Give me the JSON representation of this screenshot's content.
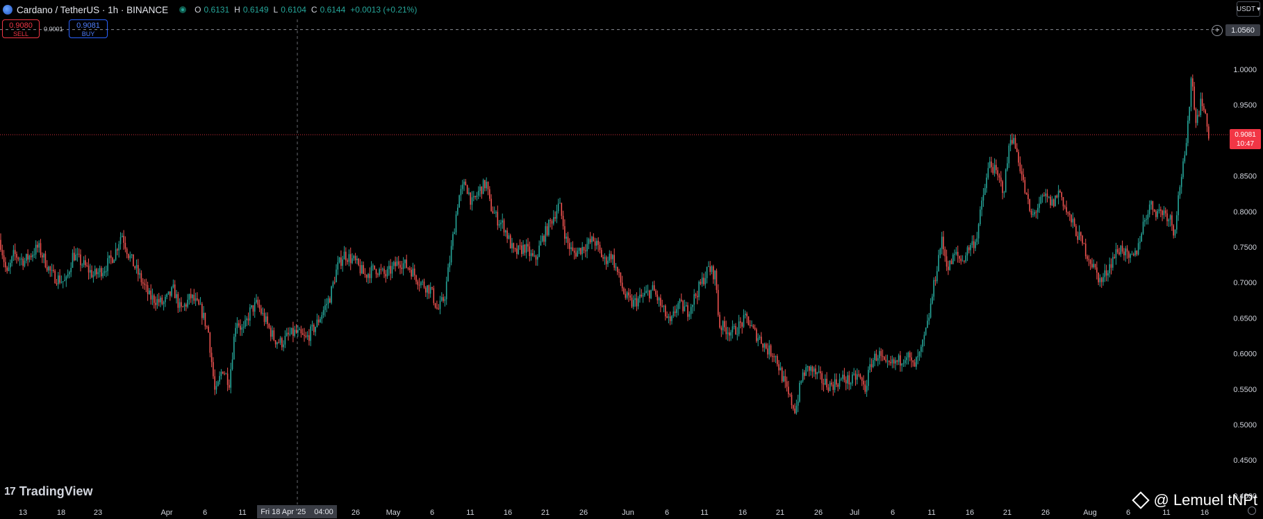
{
  "header": {
    "symbol_title": "Cardano / TetherUS · 1h · BINANCE",
    "ohlc": [
      {
        "k": "O",
        "v": "0.6131"
      },
      {
        "k": "H",
        "v": "0.6149"
      },
      {
        "k": "L",
        "v": "0.6104"
      },
      {
        "k": "C",
        "v": "0.6144"
      }
    ],
    "change": "+0.0013 (+0.21%)"
  },
  "trade": {
    "sell_price": "0.9080",
    "sell_label": "SELL",
    "spread": "0.0001",
    "buy_price": "0.9081",
    "buy_label": "BUY"
  },
  "currency": "USDT",
  "alert_line_label": "1.0560",
  "last_price_tag": {
    "price": "0.9081",
    "countdown": "10:47"
  },
  "brand": "TradingView",
  "watermark": "@ Lemuel tNPt",
  "crosshair_time": {
    "date": "Fri 18 Apr '25",
    "time": "04:00"
  },
  "colors": {
    "up": "#26a69a",
    "down": "#ef5350",
    "alert_line": "#b2b5be",
    "last_price": "#f23645",
    "crosshair": "#9598a1",
    "axis_text": "#d1d4dc"
  },
  "chart_data": {
    "type": "candlestick",
    "title": "",
    "xlabel": "",
    "ylabel": "",
    "ylim": [
      0.4,
      1.09
    ],
    "y_ticks": [
      "1.0000",
      "0.9500",
      "0.9000",
      "0.8500",
      "0.8000",
      "0.7500",
      "0.7000",
      "0.6500",
      "0.6000",
      "0.5500",
      "0.5000",
      "0.4500",
      "0.4000"
    ],
    "x_ticks": [
      "13",
      "18",
      "23",
      "Apr",
      "6",
      "11",
      "26",
      "May",
      "6",
      "11",
      "16",
      "21",
      "26",
      "Jun",
      "6",
      "11",
      "16",
      "21",
      "26",
      "Jul",
      "6",
      "11",
      "16",
      "21",
      "26",
      "Aug",
      "6",
      "11",
      "16"
    ],
    "close_path": [
      [
        0,
        0.76
      ],
      [
        10,
        0.71
      ],
      [
        20,
        0.74
      ],
      [
        35,
        0.73
      ],
      [
        55,
        0.75
      ],
      [
        75,
        0.71
      ],
      [
        95,
        0.7
      ],
      [
        105,
        0.74
      ],
      [
        115,
        0.73
      ],
      [
        135,
        0.71
      ],
      [
        150,
        0.72
      ],
      [
        165,
        0.74
      ],
      [
        175,
        0.77
      ],
      [
        185,
        0.74
      ],
      [
        200,
        0.71
      ],
      [
        215,
        0.68
      ],
      [
        235,
        0.67
      ],
      [
        250,
        0.69
      ],
      [
        260,
        0.66
      ],
      [
        275,
        0.68
      ],
      [
        290,
        0.66
      ],
      [
        300,
        0.63
      ],
      [
        310,
        0.54
      ],
      [
        320,
        0.58
      ],
      [
        330,
        0.56
      ],
      [
        340,
        0.65
      ],
      [
        350,
        0.63
      ],
      [
        360,
        0.66
      ],
      [
        370,
        0.67
      ],
      [
        385,
        0.64
      ],
      [
        395,
        0.62
      ],
      [
        405,
        0.615
      ],
      [
        415,
        0.625
      ],
      [
        425,
        0.63
      ],
      [
        440,
        0.62
      ],
      [
        455,
        0.64
      ],
      [
        465,
        0.66
      ],
      [
        475,
        0.68
      ],
      [
        485,
        0.72
      ],
      [
        495,
        0.74
      ],
      [
        510,
        0.73
      ],
      [
        525,
        0.71
      ],
      [
        540,
        0.72
      ],
      [
        555,
        0.71
      ],
      [
        575,
        0.73
      ],
      [
        590,
        0.72
      ],
      [
        605,
        0.7
      ],
      [
        620,
        0.69
      ],
      [
        630,
        0.66
      ],
      [
        640,
        0.68
      ],
      [
        650,
        0.75
      ],
      [
        660,
        0.82
      ],
      [
        670,
        0.84
      ],
      [
        680,
        0.81
      ],
      [
        690,
        0.83
      ],
      [
        700,
        0.84
      ],
      [
        705,
        0.81
      ],
      [
        715,
        0.79
      ],
      [
        725,
        0.78
      ],
      [
        740,
        0.74
      ],
      [
        755,
        0.75
      ],
      [
        770,
        0.73
      ],
      [
        780,
        0.76
      ],
      [
        790,
        0.78
      ],
      [
        805,
        0.81
      ],
      [
        815,
        0.76
      ],
      [
        825,
        0.74
      ],
      [
        840,
        0.75
      ],
      [
        855,
        0.76
      ],
      [
        870,
        0.73
      ],
      [
        880,
        0.74
      ],
      [
        890,
        0.71
      ],
      [
        900,
        0.68
      ],
      [
        910,
        0.67
      ],
      [
        925,
        0.68
      ],
      [
        940,
        0.69
      ],
      [
        955,
        0.66
      ],
      [
        965,
        0.64
      ],
      [
        975,
        0.67
      ],
      [
        990,
        0.66
      ],
      [
        1000,
        0.68
      ],
      [
        1010,
        0.7
      ],
      [
        1020,
        0.72
      ],
      [
        1030,
        0.71
      ],
      [
        1035,
        0.64
      ],
      [
        1045,
        0.635
      ],
      [
        1055,
        0.63
      ],
      [
        1065,
        0.64
      ],
      [
        1075,
        0.65
      ],
      [
        1085,
        0.63
      ],
      [
        1095,
        0.62
      ],
      [
        1105,
        0.605
      ],
      [
        1115,
        0.6
      ],
      [
        1125,
        0.57
      ],
      [
        1135,
        0.54
      ],
      [
        1145,
        0.52
      ],
      [
        1155,
        0.57
      ],
      [
        1165,
        0.58
      ],
      [
        1175,
        0.57
      ],
      [
        1185,
        0.56
      ],
      [
        1195,
        0.555
      ],
      [
        1205,
        0.56
      ],
      [
        1215,
        0.565
      ],
      [
        1225,
        0.56
      ],
      [
        1235,
        0.57
      ],
      [
        1245,
        0.55
      ],
      [
        1255,
        0.59
      ],
      [
        1265,
        0.6
      ],
      [
        1275,
        0.58
      ],
      [
        1285,
        0.585
      ],
      [
        1295,
        0.59
      ],
      [
        1305,
        0.6
      ],
      [
        1315,
        0.58
      ],
      [
        1325,
        0.6
      ],
      [
        1335,
        0.64
      ],
      [
        1345,
        0.7
      ],
      [
        1355,
        0.76
      ],
      [
        1365,
        0.72
      ],
      [
        1375,
        0.74
      ],
      [
        1385,
        0.73
      ],
      [
        1395,
        0.75
      ],
      [
        1405,
        0.76
      ],
      [
        1415,
        0.82
      ],
      [
        1425,
        0.87
      ],
      [
        1435,
        0.85
      ],
      [
        1445,
        0.83
      ],
      [
        1455,
        0.91
      ],
      [
        1465,
        0.88
      ],
      [
        1475,
        0.83
      ],
      [
        1485,
        0.79
      ],
      [
        1495,
        0.81
      ],
      [
        1505,
        0.82
      ],
      [
        1515,
        0.81
      ],
      [
        1525,
        0.83
      ],
      [
        1535,
        0.8
      ],
      [
        1545,
        0.78
      ],
      [
        1555,
        0.76
      ],
      [
        1565,
        0.74
      ],
      [
        1575,
        0.72
      ],
      [
        1585,
        0.7
      ],
      [
        1595,
        0.72
      ],
      [
        1605,
        0.74
      ],
      [
        1615,
        0.75
      ],
      [
        1625,
        0.73
      ],
      [
        1635,
        0.74
      ],
      [
        1645,
        0.78
      ],
      [
        1655,
        0.81
      ],
      [
        1665,
        0.8
      ],
      [
        1675,
        0.8
      ],
      [
        1685,
        0.79
      ],
      [
        1690,
        0.77
      ],
      [
        1700,
        0.85
      ],
      [
        1705,
        0.87
      ],
      [
        1710,
        0.92
      ],
      [
        1715,
        1.0
      ],
      [
        1720,
        0.93
      ],
      [
        1725,
        0.94
      ],
      [
        1730,
        0.96
      ],
      [
        1735,
        0.93
      ],
      [
        1740,
        0.909
      ]
    ],
    "last_price": 0.9081,
    "alert_level": 1.056
  }
}
